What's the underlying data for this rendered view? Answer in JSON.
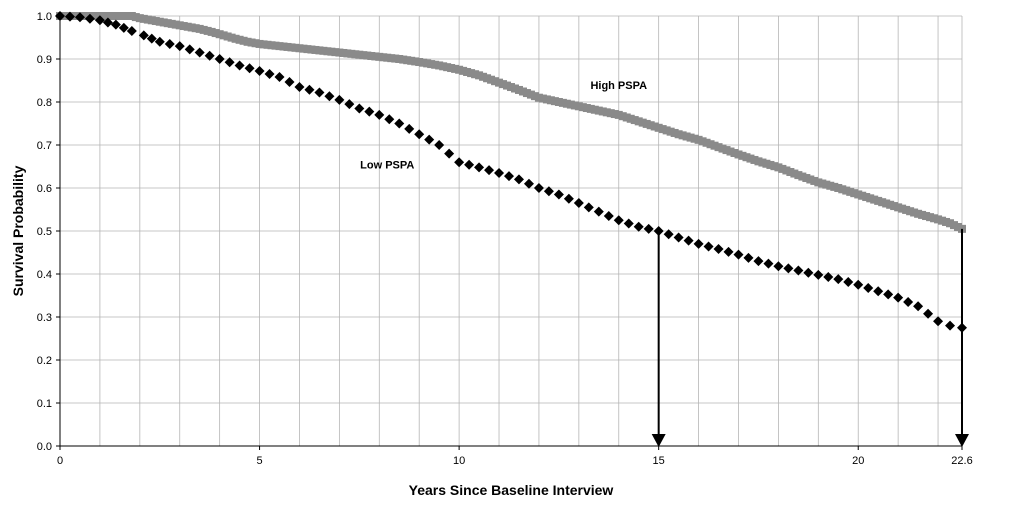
{
  "chart_data": {
    "type": "scatter",
    "title": "",
    "xlabel": "Years Since Baseline Interview",
    "ylabel": "Survival Probability",
    "xlim": [
      0,
      22.6
    ],
    "ylim": [
      0,
      1
    ],
    "x_ticks": [
      "0",
      "5",
      "10",
      "15",
      "20",
      "22.6"
    ],
    "y_ticks": [
      "0.0",
      "0.1",
      "0.2",
      "0.3",
      "0.4",
      "0.5",
      "0.6",
      "0.7",
      "0.8",
      "0.9",
      "1.0"
    ],
    "grid": true,
    "colors": {
      "high": "#8a8a8a",
      "low": "#000000",
      "grid": "#b5b5b5"
    },
    "series": [
      {
        "name": "High PSPA",
        "marker": "square",
        "label_at": [
          14,
          0.83
        ],
        "points": [
          [
            0,
            1.0
          ],
          [
            1.8,
            1.0
          ],
          [
            2.0,
            0.995
          ],
          [
            2.3,
            0.99
          ],
          [
            2.6,
            0.985
          ],
          [
            2.9,
            0.98
          ],
          [
            3.2,
            0.975
          ],
          [
            3.5,
            0.97
          ],
          [
            3.8,
            0.963
          ],
          [
            4.1,
            0.955
          ],
          [
            4.4,
            0.947
          ],
          [
            4.7,
            0.94
          ],
          [
            5.0,
            0.935
          ],
          [
            5.5,
            0.93
          ],
          [
            6.0,
            0.925
          ],
          [
            6.5,
            0.92
          ],
          [
            7.0,
            0.915
          ],
          [
            7.5,
            0.91
          ],
          [
            8.0,
            0.905
          ],
          [
            8.5,
            0.9
          ],
          [
            9.0,
            0.893
          ],
          [
            9.5,
            0.885
          ],
          [
            10.0,
            0.875
          ],
          [
            10.5,
            0.862
          ],
          [
            11.0,
            0.845
          ],
          [
            11.5,
            0.828
          ],
          [
            12.0,
            0.81
          ],
          [
            12.5,
            0.8
          ],
          [
            13.0,
            0.79
          ],
          [
            13.5,
            0.78
          ],
          [
            14.0,
            0.77
          ],
          [
            14.5,
            0.755
          ],
          [
            15.0,
            0.74
          ],
          [
            15.5,
            0.725
          ],
          [
            16.0,
            0.712
          ],
          [
            16.5,
            0.695
          ],
          [
            17.0,
            0.678
          ],
          [
            17.5,
            0.662
          ],
          [
            18.0,
            0.648
          ],
          [
            18.5,
            0.63
          ],
          [
            19.0,
            0.613
          ],
          [
            19.5,
            0.6
          ],
          [
            20.0,
            0.585
          ],
          [
            20.5,
            0.57
          ],
          [
            21.0,
            0.555
          ],
          [
            21.5,
            0.54
          ],
          [
            22.0,
            0.527
          ],
          [
            22.3,
            0.518
          ],
          [
            22.6,
            0.505
          ]
        ]
      },
      {
        "name": "Low PSPA",
        "marker": "diamond",
        "label_at": [
          8.2,
          0.645
        ],
        "points": [
          [
            0,
            1.0
          ],
          [
            0.5,
            0.997
          ],
          [
            1.0,
            0.99
          ],
          [
            1.4,
            0.98
          ],
          [
            1.8,
            0.965
          ],
          [
            2.1,
            0.955
          ],
          [
            2.5,
            0.94
          ],
          [
            3.0,
            0.93
          ],
          [
            3.5,
            0.915
          ],
          [
            4.0,
            0.9
          ],
          [
            4.5,
            0.885
          ],
          [
            5.0,
            0.872
          ],
          [
            5.5,
            0.858
          ],
          [
            6.0,
            0.835
          ],
          [
            6.5,
            0.822
          ],
          [
            7.0,
            0.805
          ],
          [
            7.5,
            0.785
          ],
          [
            8.0,
            0.77
          ],
          [
            8.5,
            0.75
          ],
          [
            9.0,
            0.725
          ],
          [
            9.5,
            0.7
          ],
          [
            10.0,
            0.66
          ],
          [
            10.5,
            0.648
          ],
          [
            11.0,
            0.635
          ],
          [
            11.5,
            0.62
          ],
          [
            12.0,
            0.6
          ],
          [
            12.5,
            0.585
          ],
          [
            13.0,
            0.565
          ],
          [
            13.5,
            0.545
          ],
          [
            14.0,
            0.525
          ],
          [
            14.5,
            0.51
          ],
          [
            15.0,
            0.5
          ],
          [
            15.5,
            0.485
          ],
          [
            16.0,
            0.47
          ],
          [
            16.5,
            0.458
          ],
          [
            17.0,
            0.445
          ],
          [
            17.5,
            0.43
          ],
          [
            18.0,
            0.418
          ],
          [
            18.5,
            0.408
          ],
          [
            19.0,
            0.398
          ],
          [
            19.5,
            0.388
          ],
          [
            20.0,
            0.375
          ],
          [
            20.5,
            0.36
          ],
          [
            21.0,
            0.345
          ],
          [
            21.5,
            0.325
          ],
          [
            22.0,
            0.29
          ],
          [
            22.3,
            0.28
          ],
          [
            22.6,
            0.275
          ]
        ]
      }
    ],
    "annotations": [
      {
        "type": "arrow",
        "x": 15,
        "from_y": 0.5,
        "to_y": 0
      },
      {
        "type": "arrow",
        "x": 22.6,
        "from_y": 0.505,
        "to_y": 0
      }
    ]
  }
}
